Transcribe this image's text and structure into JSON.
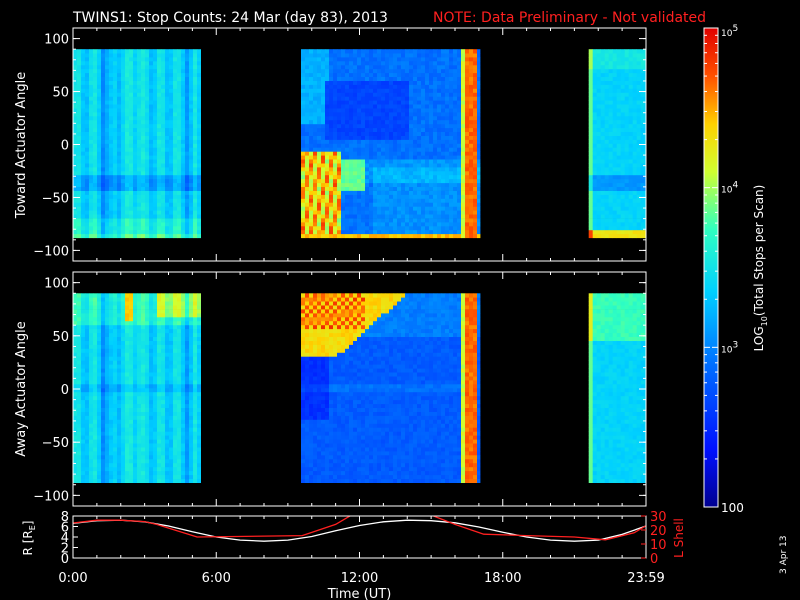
{
  "title": {
    "main": "TWINS1: Stop Counts: 24 Mar (day  83), 2013",
    "note": "NOTE: Data Preliminary - Not validated",
    "note_color": "#ff2020"
  },
  "footer_date": "3 Apr 13",
  "chart_data": [
    {
      "type": "heatmap",
      "panel": "toward",
      "ylabel": "Toward Actuator Angle",
      "ylim": [
        -110,
        110
      ],
      "yticks": [
        "100",
        "50",
        "0",
        "−50",
        "−100"
      ],
      "y_tick_values": [
        100,
        50,
        0,
        -50,
        -100
      ],
      "data_y_range": [
        -88,
        90
      ],
      "x_range_hours": [
        0,
        24
      ],
      "data_intervals_hours": [
        [
          0.0,
          5.35
        ],
        [
          9.55,
          17.05
        ],
        [
          21.6,
          24.0
        ]
      ],
      "scale": "log",
      "zlim": [
        100,
        100000
      ]
    },
    {
      "type": "heatmap",
      "panel": "away",
      "ylabel": "Away Actuator Angle",
      "ylim": [
        -110,
        110
      ],
      "yticks": [
        "100",
        "50",
        "0",
        "−50",
        "−100"
      ],
      "y_tick_values": [
        100,
        50,
        0,
        -50,
        -100
      ],
      "data_y_range": [
        -88,
        90
      ],
      "x_range_hours": [
        0,
        24
      ],
      "data_intervals_hours": [
        [
          0.0,
          5.35
        ],
        [
          9.55,
          17.05
        ],
        [
          21.6,
          24.0
        ]
      ],
      "scale": "log",
      "zlim": [
        100,
        100000
      ]
    },
    {
      "type": "line",
      "panel": "ephemeris",
      "xlabel": "Time (UT)",
      "xticks": [
        "0:00",
        "6:00",
        "12:00",
        "18:00",
        "23:59"
      ],
      "xtick_hours": [
        0,
        6,
        12,
        18,
        24
      ],
      "left_axis": {
        "label": "R [R",
        "label_sub": "E",
        "label_end": "]",
        "ylim": [
          0,
          8
        ],
        "ticks": [
          "8",
          "6",
          "4",
          "2",
          "0"
        ],
        "tick_values": [
          8,
          6,
          4,
          2,
          0
        ]
      },
      "right_axis": {
        "label": "L Shell",
        "color": "#ff2020",
        "ylim": [
          0,
          30
        ],
        "ticks": [
          "30",
          "20",
          "10",
          "0"
        ],
        "tick_values": [
          30,
          20,
          10,
          0
        ]
      },
      "series": [
        {
          "axis": "left",
          "color": "#ffffff",
          "x": [
            0,
            1,
            2,
            3,
            4,
            5,
            6,
            7,
            8,
            9,
            10,
            11,
            12,
            13,
            14,
            15,
            16,
            17,
            18,
            19,
            20,
            21,
            22,
            23,
            24
          ],
          "y": [
            6.6,
            7.1,
            7.2,
            6.9,
            6.1,
            5.0,
            4.0,
            3.4,
            3.2,
            3.4,
            4.1,
            5.2,
            6.2,
            6.9,
            7.2,
            7.1,
            6.7,
            5.9,
            4.9,
            4.0,
            3.4,
            3.2,
            3.4,
            4.5,
            6.1
          ]
        },
        {
          "axis": "right",
          "color": "#ff2020",
          "x": [
            0,
            1,
            2,
            3,
            3.5,
            5.2,
            9.6,
            11,
            12,
            14.5,
            16,
            17.2,
            19,
            21,
            22.3,
            23.5,
            24
          ],
          "y": [
            25,
            27,
            27,
            26,
            24,
            15,
            16,
            24,
            34,
            34,
            24,
            17,
            16,
            15,
            13,
            18,
            23
          ]
        }
      ]
    },
    {
      "type": "colorbar",
      "label_pre": "LOG",
      "label_sub": "10",
      "label_post": "(Total Stops per Scan)",
      "scale": "log",
      "zlim": [
        100,
        100000
      ],
      "ticks": [
        {
          "value": 100000,
          "base": "10",
          "exp": "5"
        },
        {
          "value": 10000,
          "base": "10",
          "exp": "4"
        },
        {
          "value": 1000,
          "base": "10",
          "exp": "3"
        },
        {
          "value": 100,
          "label": "100"
        }
      ]
    }
  ]
}
